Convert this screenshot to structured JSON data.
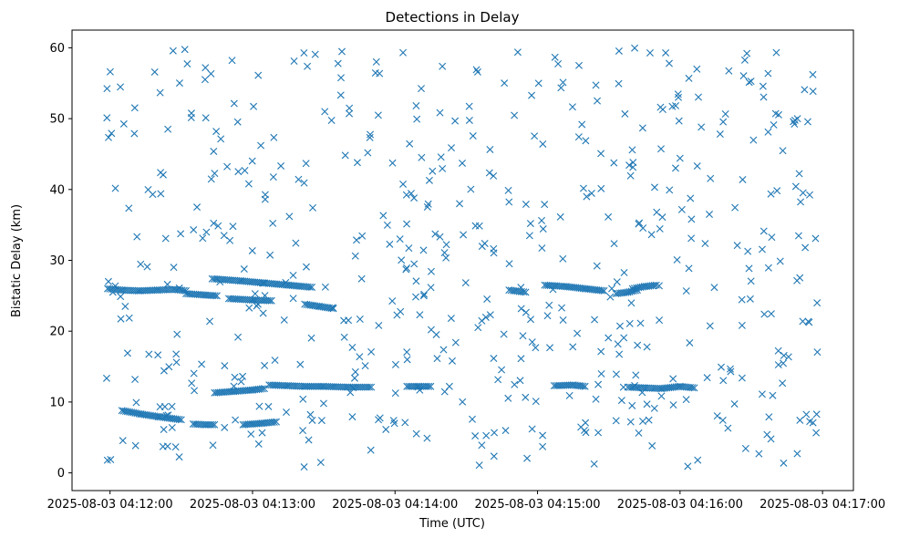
{
  "chart_data": {
    "type": "scatter",
    "title": "Detections in Delay",
    "xlabel": "Time (UTC)",
    "ylabel": "Bistatic Delay (km)",
    "marker": "x",
    "color": "#1f77b4",
    "xlim": [
      "2025-08-03 04:11:44",
      "2025-08-03 04:17:13"
    ],
    "ylim": [
      -2.5,
      62.5
    ],
    "x_ticks": [
      "2025-08-03 04:12:00",
      "2025-08-03 04:13:00",
      "2025-08-03 04:14:00",
      "2025-08-03 04:15:00",
      "2025-08-03 04:16:00",
      "2025-08-03 04:17:00"
    ],
    "y_ticks": [
      "0",
      "10",
      "20",
      "30",
      "40",
      "50",
      "60"
    ],
    "grid": false,
    "legend": "none",
    "tracks": [
      {
        "x": [
          "2025-08-03 04:11:59",
          "2025-08-03 04:12:05",
          "2025-08-03 04:12:12",
          "2025-08-03 04:12:20",
          "2025-08-03 04:12:27",
          "2025-08-03 04:12:32"
        ],
        "y": [
          26.0,
          25.8,
          25.7,
          25.8,
          25.9,
          25.7
        ]
      },
      {
        "x": [
          "2025-08-03 04:12:32",
          "2025-08-03 04:12:40",
          "2025-08-03 04:12:45"
        ],
        "y": [
          25.3,
          25.1,
          25.0
        ]
      },
      {
        "x": [
          "2025-08-03 04:12:43",
          "2025-08-03 04:12:55",
          "2025-08-03 04:13:05",
          "2025-08-03 04:13:15",
          "2025-08-03 04:13:25"
        ],
        "y": [
          27.4,
          27.1,
          26.8,
          26.5,
          26.2
        ]
      },
      {
        "x": [
          "2025-08-03 04:12:50",
          "2025-08-03 04:13:00",
          "2025-08-03 04:13:08"
        ],
        "y": [
          24.6,
          24.4,
          24.3
        ]
      },
      {
        "x": [
          "2025-08-03 04:13:22",
          "2025-08-03 04:13:28",
          "2025-08-03 04:13:34"
        ],
        "y": [
          23.8,
          23.5,
          23.2
        ]
      },
      {
        "x": [
          "2025-08-03 04:12:05",
          "2025-08-03 04:12:13",
          "2025-08-03 04:12:21",
          "2025-08-03 04:12:30"
        ],
        "y": [
          8.8,
          8.3,
          7.9,
          7.5
        ]
      },
      {
        "x": [
          "2025-08-03 04:12:35",
          "2025-08-03 04:12:40",
          "2025-08-03 04:12:44"
        ],
        "y": [
          6.9,
          6.8,
          6.8
        ]
      },
      {
        "x": [
          "2025-08-03 04:12:44",
          "2025-08-03 04:12:52",
          "2025-08-03 04:13:00",
          "2025-08-03 04:13:05"
        ],
        "y": [
          11.3,
          11.5,
          11.7,
          11.9
        ]
      },
      {
        "x": [
          "2025-08-03 04:12:56",
          "2025-08-03 04:13:04",
          "2025-08-03 04:13:10"
        ],
        "y": [
          6.8,
          7.0,
          7.2
        ]
      },
      {
        "x": [
          "2025-08-03 04:13:07",
          "2025-08-03 04:13:15",
          "2025-08-03 04:13:22",
          "2025-08-03 04:13:30",
          "2025-08-03 04:13:40",
          "2025-08-03 04:13:50"
        ],
        "y": [
          12.4,
          12.3,
          12.2,
          12.2,
          12.1,
          12.1
        ]
      },
      {
        "x": [
          "2025-08-03 04:14:05",
          "2025-08-03 04:14:10",
          "2025-08-03 04:14:15"
        ],
        "y": [
          12.2,
          12.2,
          12.2
        ]
      },
      {
        "x": [
          "2025-08-03 04:14:48",
          "2025-08-03 04:14:55"
        ],
        "y": [
          25.8,
          25.5
        ]
      },
      {
        "x": [
          "2025-08-03 04:15:03",
          "2025-08-03 04:15:12",
          "2025-08-03 04:15:20",
          "2025-08-03 04:15:28"
        ],
        "y": [
          26.5,
          26.3,
          26.0,
          25.7
        ]
      },
      {
        "x": [
          "2025-08-03 04:15:33",
          "2025-08-03 04:15:38",
          "2025-08-03 04:15:42"
        ],
        "y": [
          25.3,
          25.5,
          25.8
        ]
      },
      {
        "x": [
          "2025-08-03 04:15:40",
          "2025-08-03 04:15:45",
          "2025-08-03 04:15:50"
        ],
        "y": [
          26.0,
          26.3,
          26.5
        ]
      },
      {
        "x": [
          "2025-08-03 04:15:38",
          "2025-08-03 04:15:45",
          "2025-08-03 04:15:52",
          "2025-08-03 04:16:00",
          "2025-08-03 04:16:06"
        ],
        "y": [
          12.1,
          12.0,
          11.9,
          12.2,
          12.0
        ]
      },
      {
        "x": [
          "2025-08-03 04:15:07",
          "2025-08-03 04:15:15",
          "2025-08-03 04:15:20"
        ],
        "y": [
          12.3,
          12.4,
          12.2
        ]
      }
    ],
    "noise_count": 560
  }
}
